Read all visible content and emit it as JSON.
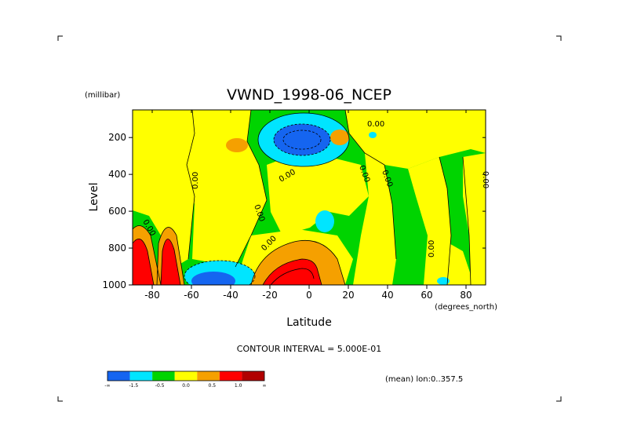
{
  "chart_data": {
    "type": "heatmap",
    "title": "VWND_1998-06_NCEP",
    "xlabel": "Latitude",
    "ylabel": "Level",
    "y_units": "(millibar)",
    "x_units": "(degrees_north)",
    "xlim": [
      -90,
      90
    ],
    "ylim": [
      1000,
      50
    ],
    "y_reversed": true,
    "x_ticks": [
      "-80",
      "-60",
      "-40",
      "-20",
      "0",
      "20",
      "40",
      "60",
      "80"
    ],
    "x_tick_values": [
      -80,
      -60,
      -40,
      -20,
      0,
      20,
      40,
      60,
      80
    ],
    "y_ticks": [
      "200",
      "400",
      "600",
      "800",
      "1000"
    ],
    "y_tick_values": [
      200,
      400,
      600,
      800,
      1000
    ],
    "contour_interval_text": "CONTOUR INTERVAL = 5.000E-01",
    "contour_label": "0.00",
    "mean_text": "(mean) lon:0..357.5",
    "colorbar": {
      "bins": [
        {
          "color": "#1565f0"
        },
        {
          "color": "#00e5ff"
        },
        {
          "color": "#00d400"
        },
        {
          "color": "#ffff00"
        },
        {
          "color": "#f5a000"
        },
        {
          "color": "#ff0000"
        },
        {
          "color": "#b10000"
        }
      ],
      "labels": [
        "-∞",
        "-1.5",
        "-0.5",
        "0.0",
        "0.5",
        "1.0",
        "∞"
      ]
    },
    "regions": [
      {
        "name": "positive-region-sh",
        "sign": "positive",
        "lat": [
          -90,
          -60
        ],
        "level": [
          650,
          1000
        ],
        "value": 1.5
      },
      {
        "name": "negative-region-tropical-upper",
        "sign": "negative",
        "lat": [
          -25,
          5
        ],
        "level": [
          120,
          300
        ],
        "value": -1.5
      },
      {
        "name": "positive-region-tropical-lower",
        "sign": "positive",
        "lat": [
          -35,
          15
        ],
        "level": [
          780,
          1000
        ],
        "value": 1.5
      },
      {
        "name": "negative-region-sh-lower",
        "sign": "negative",
        "lat": [
          -65,
          -35
        ],
        "level": [
          880,
          1000
        ],
        "value": -1.0
      }
    ]
  }
}
